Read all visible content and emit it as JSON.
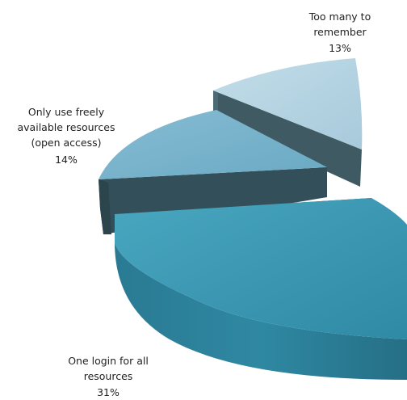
{
  "chart_data": {
    "type": "pie",
    "style": "3d-exploded",
    "slices": [
      {
        "label_lines": [
          "Too many to",
          "remember"
        ],
        "percent_label": "13%",
        "value": 13,
        "color": "#b6d4e3"
      },
      {
        "label_lines": [
          "Only use freely",
          "available resources",
          "(open access)"
        ],
        "percent_label": "14%",
        "value": 14,
        "color": "#78b1ca"
      },
      {
        "label_lines": [
          "One login for all",
          "resources"
        ],
        "percent_label": "31%",
        "value": 31,
        "color": "#3d98b2"
      }
    ]
  }
}
